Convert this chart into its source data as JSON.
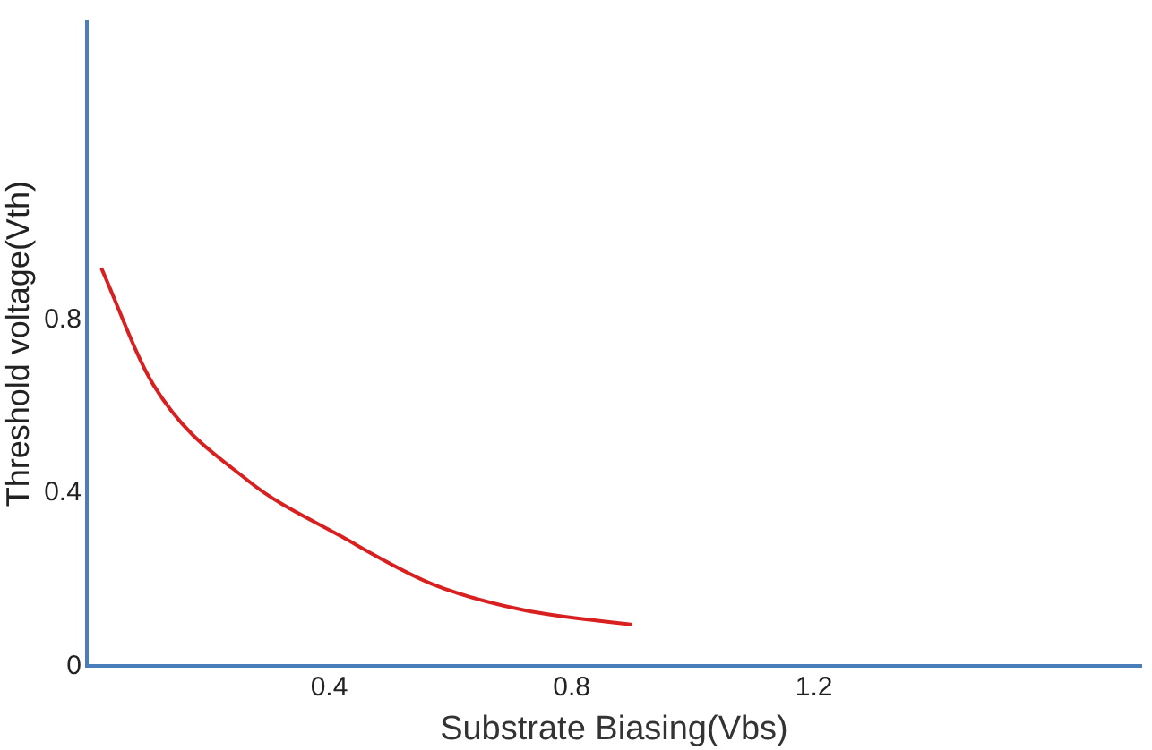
{
  "chart_data": {
    "type": "line",
    "xlabel": "Substrate Biasing(Vbs)",
    "ylabel": "Threshold voltage(Vth)",
    "x": [
      0.024,
      0.11,
      0.265,
      0.42,
      0.57,
      0.72,
      0.9
    ],
    "series": [
      {
        "color": "#d92020",
        "values": [
          0.92,
          0.65,
          0.43,
          0.3,
          0.19,
          0.13,
          0.096
        ]
      }
    ],
    "xlim": [
      0,
      1.74
    ],
    "ylim": [
      0,
      1.49
    ],
    "xticks": [
      0.4,
      0.8,
      1.2
    ],
    "yticks": [
      0,
      0.4,
      0.8
    ],
    "grid": false,
    "legend": false,
    "marker": "none",
    "line_style": "solid"
  }
}
